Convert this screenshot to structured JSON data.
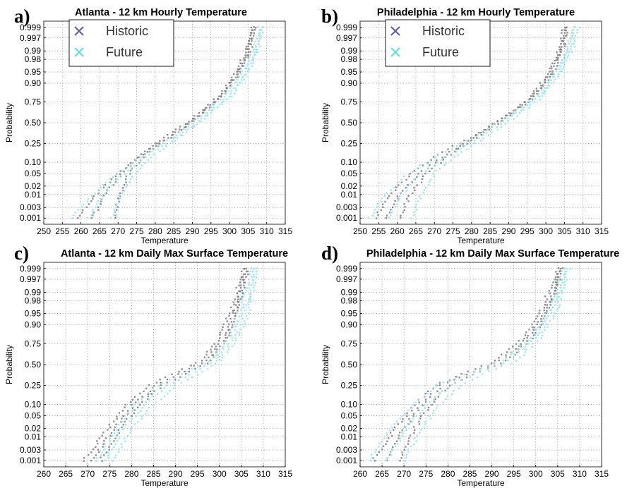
{
  "colors": {
    "historic": "#7a7a7a",
    "future": "#8fe0f2",
    "legend_historic_marker": "#5a5ab0",
    "legend_future_marker": "#5cdde8"
  },
  "chart_data": [
    {
      "type": "scatter",
      "panel": "a)",
      "title": "Atlanta - 12 km Hourly Temperature",
      "xlabel": "Temperature",
      "ylabel": "Probability",
      "xlim": [
        250,
        315
      ],
      "x_ticks": [
        250,
        255,
        260,
        265,
        270,
        275,
        280,
        285,
        290,
        295,
        300,
        305,
        310,
        315
      ],
      "y_scale": "normal-probability",
      "y_ticks": [
        0.001,
        0.003,
        0.01,
        0.02,
        0.05,
        0.1,
        0.25,
        0.5,
        0.75,
        0.9,
        0.95,
        0.98,
        0.99,
        0.997,
        0.999
      ],
      "grid": true,
      "legend": {
        "placement": "top-left",
        "entries": [
          "Historic",
          "Future"
        ]
      },
      "series": [
        {
          "name": "Historic",
          "curves": [
            {
              "x": [
                259,
                264,
                270,
                276,
                282,
                290,
                297,
                302,
                304.5,
                306
              ],
              "y": [
                0.001,
                0.01,
                0.05,
                0.15,
                0.3,
                0.55,
                0.8,
                0.95,
                0.99,
                0.999
              ]
            },
            {
              "x": [
                263,
                266.5,
                271,
                276.5,
                283,
                290.5,
                297.5,
                302.5,
                305,
                306.5
              ],
              "y": [
                0.001,
                0.01,
                0.05,
                0.15,
                0.3,
                0.55,
                0.8,
                0.95,
                0.99,
                0.999
              ]
            },
            {
              "x": [
                269,
                270.5,
                273,
                277,
                283.5,
                291,
                298,
                303,
                305.5,
                307
              ],
              "y": [
                0.001,
                0.01,
                0.05,
                0.15,
                0.3,
                0.55,
                0.8,
                0.95,
                0.99,
                0.999
              ]
            }
          ]
        },
        {
          "name": "Future",
          "curves": [
            {
              "x": [
                257.5,
                263,
                270,
                277,
                284,
                291.5,
                298.5,
                303.5,
                306.5,
                308
              ],
              "y": [
                0.001,
                0.01,
                0.05,
                0.15,
                0.3,
                0.55,
                0.8,
                0.95,
                0.99,
                0.999
              ]
            },
            {
              "x": [
                262,
                266,
                271.5,
                278,
                285,
                292.5,
                299.5,
                304.5,
                307,
                308.5
              ],
              "y": [
                0.001,
                0.01,
                0.05,
                0.15,
                0.3,
                0.55,
                0.8,
                0.95,
                0.99,
                0.999
              ]
            },
            {
              "x": [
                268.5,
                271,
                274.5,
                280,
                286,
                293,
                300.5,
                305,
                307.5,
                309
              ],
              "y": [
                0.001,
                0.01,
                0.05,
                0.15,
                0.3,
                0.55,
                0.8,
                0.95,
                0.99,
                0.999
              ]
            }
          ]
        }
      ]
    },
    {
      "type": "scatter",
      "panel": "b)",
      "title": "Philadelphia - 12 km Hourly Temperature",
      "xlabel": "Temperature",
      "ylabel": "Probability",
      "xlim": [
        250,
        315
      ],
      "x_ticks": [
        250,
        255,
        260,
        265,
        270,
        275,
        280,
        285,
        290,
        295,
        300,
        305,
        310,
        315
      ],
      "y_scale": "normal-probability",
      "y_ticks": [
        0.001,
        0.003,
        0.01,
        0.02,
        0.05,
        0.1,
        0.25,
        0.5,
        0.75,
        0.9,
        0.95,
        0.98,
        0.99,
        0.997,
        0.999
      ],
      "grid": true,
      "legend": {
        "placement": "top-left",
        "entries": [
          "Historic",
          "Future"
        ]
      },
      "series": [
        {
          "name": "Historic",
          "curves": [
            {
              "x": [
                254,
                258,
                264,
                271,
                279,
                288,
                296,
                301,
                303.5,
                305
              ],
              "y": [
                0.001,
                0.01,
                0.05,
                0.15,
                0.3,
                0.55,
                0.8,
                0.95,
                0.99,
                0.999
              ]
            },
            {
              "x": [
                257,
                260.5,
                266,
                273,
                280,
                288.5,
                296.5,
                301.5,
                304,
                305.5
              ],
              "y": [
                0.001,
                0.01,
                0.05,
                0.15,
                0.3,
                0.55,
                0.8,
                0.95,
                0.99,
                0.999
              ]
            },
            {
              "x": [
                260.5,
                263.5,
                268,
                274,
                281,
                289,
                297,
                302,
                304.5,
                306
              ],
              "y": [
                0.001,
                0.01,
                0.05,
                0.15,
                0.3,
                0.55,
                0.8,
                0.95,
                0.99,
                0.999
              ]
            }
          ]
        },
        {
          "name": "Future",
          "curves": [
            {
              "x": [
                252.5,
                257,
                263,
                271,
                280,
                289,
                297.5,
                302.5,
                305.5,
                307.5
              ],
              "y": [
                0.001,
                0.01,
                0.05,
                0.15,
                0.3,
                0.55,
                0.8,
                0.95,
                0.99,
                0.999
              ]
            },
            {
              "x": [
                257.5,
                261,
                266.5,
                274,
                281.5,
                290,
                298,
                303.5,
                306,
                308
              ],
              "y": [
                0.001,
                0.01,
                0.05,
                0.15,
                0.3,
                0.55,
                0.8,
                0.95,
                0.99,
                0.999
              ]
            },
            {
              "x": [
                264,
                266.5,
                270,
                276,
                283,
                291,
                299,
                304,
                307,
                309
              ],
              "y": [
                0.001,
                0.01,
                0.05,
                0.15,
                0.3,
                0.55,
                0.8,
                0.95,
                0.99,
                0.999
              ]
            }
          ]
        }
      ]
    },
    {
      "type": "scatter",
      "panel": "c)",
      "title": "Atlanta - 12 km Daily Max Surface Temperature",
      "xlabel": "Temperature",
      "ylabel": "Probability",
      "xlim": [
        260,
        315
      ],
      "x_ticks": [
        260,
        265,
        270,
        275,
        280,
        285,
        290,
        295,
        300,
        305,
        310,
        315
      ],
      "y_scale": "normal-probability",
      "y_ticks": [
        0.001,
        0.003,
        0.01,
        0.02,
        0.05,
        0.1,
        0.25,
        0.5,
        0.75,
        0.9,
        0.95,
        0.98,
        0.99,
        0.997,
        0.999
      ],
      "grid": true,
      "series": [
        {
          "name": "Historic",
          "curves": [
            {
              "x": [
                269,
                274.5,
                279,
                284,
                290,
                296,
                300,
                302.5,
                304,
                305.5
              ],
              "y": [
                0.001,
                0.02,
                0.1,
                0.25,
                0.4,
                0.55,
                0.8,
                0.95,
                0.99,
                0.999
              ]
            },
            {
              "x": [
                271,
                276,
                280.5,
                285.5,
                291.5,
                297,
                301,
                303.5,
                305,
                306
              ],
              "y": [
                0.001,
                0.02,
                0.1,
                0.25,
                0.4,
                0.55,
                0.8,
                0.95,
                0.99,
                0.999
              ]
            },
            {
              "x": [
                273,
                277.5,
                282,
                287,
                293,
                298,
                301.5,
                304,
                305.5,
                306.5
              ],
              "y": [
                0.001,
                0.02,
                0.1,
                0.25,
                0.4,
                0.55,
                0.8,
                0.95,
                0.99,
                0.999
              ]
            }
          ]
        },
        {
          "name": "Future",
          "curves": [
            {
              "x": [
                272,
                276.5,
                281,
                286,
                292,
                298,
                302,
                304.5,
                306,
                307.5
              ],
              "y": [
                0.001,
                0.02,
                0.1,
                0.25,
                0.4,
                0.55,
                0.8,
                0.95,
                0.99,
                0.999
              ]
            },
            {
              "x": [
                274,
                278,
                283,
                288,
                294,
                299,
                303,
                305.5,
                307,
                308
              ],
              "y": [
                0.001,
                0.02,
                0.1,
                0.25,
                0.4,
                0.55,
                0.8,
                0.95,
                0.99,
                0.999
              ]
            },
            {
              "x": [
                276,
                280,
                285,
                290,
                295.5,
                300,
                304,
                306.5,
                307.5,
                308.5
              ],
              "y": [
                0.001,
                0.02,
                0.1,
                0.25,
                0.4,
                0.55,
                0.8,
                0.95,
                0.99,
                0.999
              ]
            }
          ]
        }
      ]
    },
    {
      "type": "scatter",
      "panel": "d)",
      "title": "Philadelphia - 12 km Daily Max Surface Temperature",
      "xlabel": "Temperature",
      "ylabel": "Probability",
      "xlim": [
        260,
        315
      ],
      "x_ticks": [
        260,
        265,
        270,
        275,
        280,
        285,
        290,
        295,
        300,
        305,
        310,
        315
      ],
      "y_scale": "normal-probability",
      "y_ticks": [
        0.001,
        0.003,
        0.01,
        0.02,
        0.05,
        0.1,
        0.25,
        0.5,
        0.75,
        0.9,
        0.95,
        0.98,
        0.99,
        0.997,
        0.999
      ],
      "grid": true,
      "series": [
        {
          "name": "Historic",
          "curves": [
            {
              "x": [
                263,
                268,
                272.5,
                277,
                284,
                291,
                297,
                301,
                303,
                305
              ],
              "y": [
                0.001,
                0.02,
                0.1,
                0.25,
                0.4,
                0.55,
                0.8,
                0.95,
                0.99,
                0.999
              ]
            },
            {
              "x": [
                266,
                270,
                274,
                278.5,
                285,
                292,
                298,
                302,
                304,
                305.5
              ],
              "y": [
                0.001,
                0.02,
                0.1,
                0.25,
                0.4,
                0.55,
                0.8,
                0.95,
                0.99,
                0.999
              ]
            },
            {
              "x": [
                269,
                272.5,
                276,
                280.5,
                287,
                293.5,
                299,
                302.5,
                304.5,
                306
              ],
              "y": [
                0.001,
                0.02,
                0.1,
                0.25,
                0.4,
                0.55,
                0.8,
                0.95,
                0.99,
                0.999
              ]
            }
          ]
        },
        {
          "name": "Future",
          "curves": [
            {
              "x": [
                262,
                267,
                272,
                277.5,
                285,
                292.5,
                299,
                303,
                305,
                306.5
              ],
              "y": [
                0.001,
                0.02,
                0.1,
                0.25,
                0.4,
                0.55,
                0.8,
                0.95,
                0.99,
                0.999
              ]
            },
            {
              "x": [
                266,
                270.5,
                275,
                280.5,
                287,
                294,
                300,
                303.5,
                305.5,
                307
              ],
              "y": [
                0.001,
                0.02,
                0.1,
                0.25,
                0.4,
                0.55,
                0.8,
                0.95,
                0.99,
                0.999
              ]
            },
            {
              "x": [
                270,
                274,
                278,
                283,
                289,
                295.5,
                301,
                304.5,
                306,
                307.5
              ],
              "y": [
                0.001,
                0.02,
                0.1,
                0.25,
                0.4,
                0.55,
                0.8,
                0.95,
                0.99,
                0.999
              ]
            }
          ]
        }
      ]
    }
  ]
}
